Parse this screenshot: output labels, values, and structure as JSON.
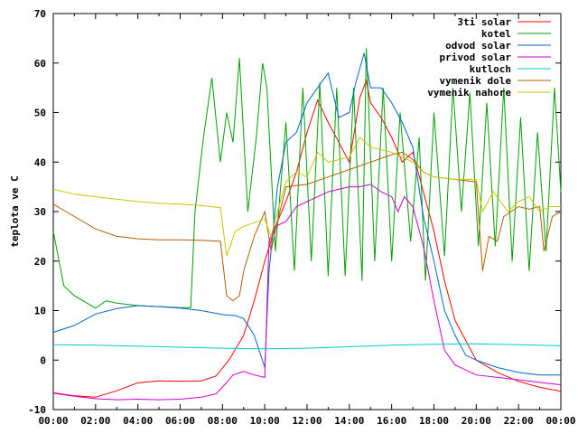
{
  "chart_data": {
    "type": "line",
    "ylabel": "teplota ve C",
    "xlabel": "",
    "x_tick_labels": [
      "00:00",
      "02:00",
      "04:00",
      "06:00",
      "08:00",
      "10:00",
      "12:00",
      "14:00",
      "16:00",
      "18:00",
      "20:00",
      "22:00",
      "00:00"
    ],
    "y_tick_labels": [
      "-10",
      "0",
      "10",
      "20",
      "30",
      "40",
      "50",
      "60",
      "70"
    ],
    "xlim_hours": [
      0,
      24
    ],
    "ylim": [
      -10,
      70
    ],
    "grid": false,
    "legend_position": "top-right",
    "series": [
      {
        "name": "3ti solar",
        "color": "#ff0000",
        "points": [
          [
            0,
            -6.6
          ],
          [
            1,
            -7.2
          ],
          [
            2,
            -7.5
          ],
          [
            3,
            -6.2
          ],
          [
            4,
            -4.6
          ],
          [
            5,
            -4.2
          ],
          [
            6,
            -4.3
          ],
          [
            7,
            -4.2
          ],
          [
            7.7,
            -3.2
          ],
          [
            8.3,
            0
          ],
          [
            9,
            5
          ],
          [
            9.5,
            12
          ],
          [
            10,
            20
          ],
          [
            10.5,
            27
          ],
          [
            11,
            32
          ],
          [
            11.5,
            38
          ],
          [
            12,
            46
          ],
          [
            12.5,
            52.5
          ],
          [
            13,
            48
          ],
          [
            13.5,
            44
          ],
          [
            14,
            40
          ],
          [
            14.5,
            53
          ],
          [
            14.8,
            56.5
          ],
          [
            15,
            52
          ],
          [
            15.5,
            49
          ],
          [
            16,
            45
          ],
          [
            16.5,
            40
          ],
          [
            17,
            42
          ],
          [
            17.5,
            34
          ],
          [
            18,
            26
          ],
          [
            18.5,
            16
          ],
          [
            19,
            8
          ],
          [
            20,
            0
          ],
          [
            21,
            -2.5
          ],
          [
            22,
            -4.3
          ],
          [
            23,
            -5.5
          ],
          [
            24,
            -6.3
          ]
        ]
      },
      {
        "name": "kotel",
        "color": "#00a000",
        "points": [
          [
            0,
            26
          ],
          [
            0.5,
            15
          ],
          [
            1,
            13
          ],
          [
            2,
            10.5
          ],
          [
            2.5,
            12
          ],
          [
            3,
            11.5
          ],
          [
            4,
            11
          ],
          [
            5,
            10.8
          ],
          [
            6,
            10.6
          ],
          [
            6.5,
            10.6
          ],
          [
            6.7,
            30
          ],
          [
            7.1,
            45
          ],
          [
            7.5,
            57
          ],
          [
            7.9,
            40
          ],
          [
            8.2,
            50
          ],
          [
            8.5,
            44
          ],
          [
            8.8,
            61
          ],
          [
            9.2,
            30
          ],
          [
            9.6,
            45
          ],
          [
            9.9,
            60
          ],
          [
            10.1,
            55
          ],
          [
            10.5,
            22
          ],
          [
            11,
            48
          ],
          [
            11.4,
            18
          ],
          [
            11.8,
            55
          ],
          [
            12.2,
            20
          ],
          [
            12.6,
            56
          ],
          [
            13,
            17
          ],
          [
            13.4,
            55
          ],
          [
            13.8,
            17
          ],
          [
            14.2,
            55
          ],
          [
            14.6,
            16
          ],
          [
            14.8,
            63
          ],
          [
            15.2,
            20
          ],
          [
            15.6,
            55
          ],
          [
            16,
            20
          ],
          [
            16.4,
            50
          ],
          [
            16.9,
            24
          ],
          [
            17.3,
            45
          ],
          [
            17.6,
            16
          ],
          [
            18,
            50
          ],
          [
            18.5,
            21
          ],
          [
            18.9,
            55
          ],
          [
            19.3,
            30
          ],
          [
            19.7,
            54
          ],
          [
            20.1,
            23
          ],
          [
            20.5,
            52
          ],
          [
            20.9,
            23
          ],
          [
            21.3,
            55
          ],
          [
            21.7,
            20
          ],
          [
            22.1,
            49
          ],
          [
            22.5,
            18
          ],
          [
            22.9,
            46
          ],
          [
            23.3,
            22
          ],
          [
            23.7,
            55
          ],
          [
            24,
            34
          ]
        ]
      },
      {
        "name": "odvod solar",
        "color": "#0066cc",
        "points": [
          [
            0,
            5.6
          ],
          [
            1,
            7
          ],
          [
            2,
            9.3
          ],
          [
            3,
            10.4
          ],
          [
            4,
            11
          ],
          [
            5,
            10.8
          ],
          [
            6,
            10.5
          ],
          [
            7,
            10
          ],
          [
            8,
            9.2
          ],
          [
            8.6,
            9
          ],
          [
            9,
            8.4
          ],
          [
            9.5,
            5
          ],
          [
            10,
            -1.5
          ],
          [
            10.2,
            18
          ],
          [
            10.6,
            35
          ],
          [
            11,
            44
          ],
          [
            11.5,
            46
          ],
          [
            12,
            52
          ],
          [
            12.5,
            55
          ],
          [
            13,
            58
          ],
          [
            13.5,
            49
          ],
          [
            14,
            50
          ],
          [
            14.3,
            56
          ],
          [
            14.7,
            62
          ],
          [
            15,
            55
          ],
          [
            15.5,
            55
          ],
          [
            16,
            52
          ],
          [
            16.5,
            48
          ],
          [
            17,
            43
          ],
          [
            17.5,
            29
          ],
          [
            18,
            20
          ],
          [
            18.5,
            10
          ],
          [
            19,
            5
          ],
          [
            19.5,
            1
          ],
          [
            20,
            0
          ],
          [
            21,
            -1.5
          ],
          [
            22,
            -2.5
          ],
          [
            23,
            -3
          ],
          [
            24,
            -3
          ]
        ]
      },
      {
        "name": "privod solar",
        "color": "#cc00cc",
        "points": [
          [
            0,
            -6.7
          ],
          [
            1,
            -7.3
          ],
          [
            2,
            -7.8
          ],
          [
            3,
            -8
          ],
          [
            4,
            -7.9
          ],
          [
            5,
            -8
          ],
          [
            6,
            -7.9
          ],
          [
            7,
            -7.5
          ],
          [
            7.7,
            -6.8
          ],
          [
            8.1,
            -5
          ],
          [
            8.5,
            -3
          ],
          [
            9,
            -2.3
          ],
          [
            9.5,
            -3
          ],
          [
            10,
            -3.5
          ],
          [
            10.2,
            24
          ],
          [
            10.5,
            27
          ],
          [
            11,
            28
          ],
          [
            11.5,
            31
          ],
          [
            12,
            32
          ],
          [
            12.5,
            33
          ],
          [
            13,
            34
          ],
          [
            13.5,
            34.5
          ],
          [
            14,
            35
          ],
          [
            14.5,
            35
          ],
          [
            15,
            35.5
          ],
          [
            15.5,
            34
          ],
          [
            16,
            33
          ],
          [
            16.3,
            30
          ],
          [
            16.6,
            33
          ],
          [
            17,
            31
          ],
          [
            17.5,
            23
          ],
          [
            18,
            12
          ],
          [
            18.5,
            2
          ],
          [
            19,
            -1
          ],
          [
            20,
            -3
          ],
          [
            21,
            -3.5
          ],
          [
            22,
            -4
          ],
          [
            23,
            -4.5
          ],
          [
            24,
            -5
          ]
        ]
      },
      {
        "name": "kutloch",
        "color": "#00cccc",
        "points": [
          [
            0,
            3.1
          ],
          [
            2,
            3
          ],
          [
            4,
            2.8
          ],
          [
            6,
            2.6
          ],
          [
            8,
            2.4
          ],
          [
            10,
            2.3
          ],
          [
            12,
            2.4
          ],
          [
            14,
            2.7
          ],
          [
            16,
            3
          ],
          [
            18,
            3.2
          ],
          [
            20,
            3.3
          ],
          [
            22,
            3.1
          ],
          [
            24,
            2.9
          ]
        ]
      },
      {
        "name": "vymenik dole",
        "color": "#b06000",
        "points": [
          [
            0,
            31.5
          ],
          [
            1,
            29
          ],
          [
            2,
            26.5
          ],
          [
            3,
            25
          ],
          [
            4,
            24.5
          ],
          [
            5,
            24.3
          ],
          [
            6,
            24.3
          ],
          [
            7,
            24.2
          ],
          [
            7.9,
            24
          ],
          [
            8.2,
            13
          ],
          [
            8.5,
            12
          ],
          [
            8.8,
            13
          ],
          [
            9,
            18
          ],
          [
            9.5,
            25
          ],
          [
            10,
            30
          ],
          [
            10.3,
            22
          ],
          [
            10.6,
            28
          ],
          [
            11,
            35
          ],
          [
            12,
            35.5
          ],
          [
            13,
            37
          ],
          [
            14,
            38.5
          ],
          [
            15,
            40
          ],
          [
            16,
            41.5
          ],
          [
            16.5,
            42
          ],
          [
            17,
            40.5
          ],
          [
            17.5,
            38
          ],
          [
            18,
            37
          ],
          [
            19,
            36.5
          ],
          [
            20,
            36
          ],
          [
            20.3,
            18
          ],
          [
            20.6,
            25
          ],
          [
            21,
            24
          ],
          [
            21.3,
            29
          ],
          [
            22,
            31
          ],
          [
            22.5,
            30.5
          ],
          [
            23,
            31
          ],
          [
            23.2,
            22
          ],
          [
            23.6,
            29
          ],
          [
            24,
            30
          ]
        ]
      },
      {
        "name": "vymenik nahore",
        "color": "#c8c800",
        "points": [
          [
            0,
            34.5
          ],
          [
            1,
            33.5
          ],
          [
            2,
            33
          ],
          [
            3,
            32.5
          ],
          [
            4,
            32
          ],
          [
            5,
            31.7
          ],
          [
            6,
            31.5
          ],
          [
            7,
            31.2
          ],
          [
            7.9,
            30.8
          ],
          [
            8.2,
            21
          ],
          [
            8.6,
            26
          ],
          [
            9,
            27
          ],
          [
            10,
            28.5
          ],
          [
            10.3,
            25
          ],
          [
            10.6,
            30
          ],
          [
            11,
            36
          ],
          [
            11.5,
            38
          ],
          [
            12,
            37
          ],
          [
            12.5,
            42
          ],
          [
            13,
            40
          ],
          [
            14,
            41
          ],
          [
            14.5,
            45
          ],
          [
            15,
            43
          ],
          [
            16,
            42
          ],
          [
            16.5,
            41
          ],
          [
            17,
            40
          ],
          [
            17.5,
            38
          ],
          [
            18,
            37
          ],
          [
            19,
            36.5
          ],
          [
            20,
            36.5
          ],
          [
            20.3,
            30
          ],
          [
            20.8,
            34
          ],
          [
            21.5,
            30
          ],
          [
            22,
            32
          ],
          [
            22.5,
            33
          ],
          [
            23,
            30
          ],
          [
            23.5,
            31
          ],
          [
            24,
            31
          ]
        ]
      }
    ]
  }
}
